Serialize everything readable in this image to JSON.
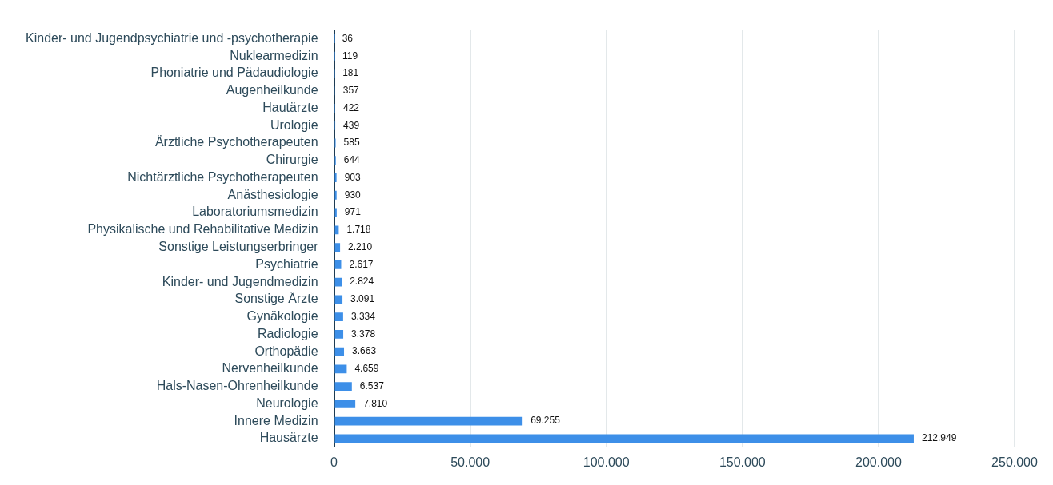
{
  "chart_data": {
    "type": "bar",
    "orientation": "horizontal",
    "categories": [
      "Kinder- und Jugendpsychiatrie und -psychotherapie",
      "Nuklearmedizin",
      "Phoniatrie und Pädaudiologie",
      "Augenheilkunde",
      "Hautärzte",
      "Urologie",
      "Ärztliche Psychotherapeuten",
      "Chirurgie",
      "Nichtärztliche Psychotherapeuten",
      "Anästhesiologie",
      "Laboratoriumsmedizin",
      "Physikalische und Rehabilitative Medizin",
      "Sonstige Leistungserbringer",
      "Psychiatrie",
      "Kinder- und Jugendmedizin",
      "Sonstige Ärzte",
      "Gynäkologie",
      "Radiologie",
      "Orthopädie",
      "Nervenheilkunde",
      "Hals-Nasen-Ohrenheilkunde",
      "Neurologie",
      "Innere Medizin",
      "Hausärzte"
    ],
    "values": [
      36,
      119,
      181,
      357,
      422,
      439,
      585,
      644,
      903,
      930,
      971,
      1718,
      2210,
      2617,
      2824,
      3091,
      3334,
      3378,
      3663,
      4659,
      6537,
      7810,
      69255,
      212949
    ],
    "value_labels": [
      "36",
      "119",
      "181",
      "357",
      "422",
      "439",
      "585",
      "644",
      "903",
      "930",
      "971",
      "1.718",
      "2.210",
      "2.617",
      "2.824",
      "3.091",
      "3.334",
      "3.378",
      "3.663",
      "4.659",
      "6.537",
      "7.810",
      "69.255",
      "212.949"
    ],
    "color": "#3d8fe8",
    "xlim": [
      0,
      250000
    ],
    "xticks": [
      {
        "value": 0,
        "label": "0"
      },
      {
        "value": 50000,
        "label": "50.000"
      },
      {
        "value": 100000,
        "label": "100.000"
      },
      {
        "value": 150000,
        "label": "150.000"
      },
      {
        "value": 200000,
        "label": "200.000"
      },
      {
        "value": 250000,
        "label": "250.000"
      }
    ],
    "grid": "x",
    "legend": false
  }
}
